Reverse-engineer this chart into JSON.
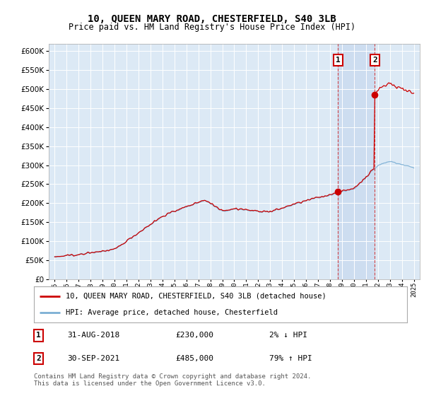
{
  "title": "10, QUEEN MARY ROAD, CHESTERFIELD, S40 3LB",
  "subtitle": "Price paid vs. HM Land Registry's House Price Index (HPI)",
  "legend_line1": "10, QUEEN MARY ROAD, CHESTERFIELD, S40 3LB (detached house)",
  "legend_line2": "HPI: Average price, detached house, Chesterfield",
  "annotation1_date": "31-AUG-2018",
  "annotation1_price": "£230,000",
  "annotation1_hpi": "2% ↓ HPI",
  "annotation2_date": "30-SEP-2021",
  "annotation2_price": "£485,000",
  "annotation2_hpi": "79% ↑ HPI",
  "footer": "Contains HM Land Registry data © Crown copyright and database right 2024.\nThis data is licensed under the Open Government Licence v3.0.",
  "ylim": [
    0,
    620000
  ],
  "yticks": [
    0,
    50000,
    100000,
    150000,
    200000,
    250000,
    300000,
    350000,
    400000,
    450000,
    500000,
    550000,
    600000
  ],
  "background_color": "#dce9f5",
  "highlight_color": "#c8d8ee",
  "red_color": "#cc0000",
  "blue_color": "#7bafd4",
  "marker1_year": 2018.67,
  "marker1_value": 230000,
  "marker2_year": 2021.75,
  "marker2_value": 485000,
  "xmin": 1995,
  "xmax": 2025
}
